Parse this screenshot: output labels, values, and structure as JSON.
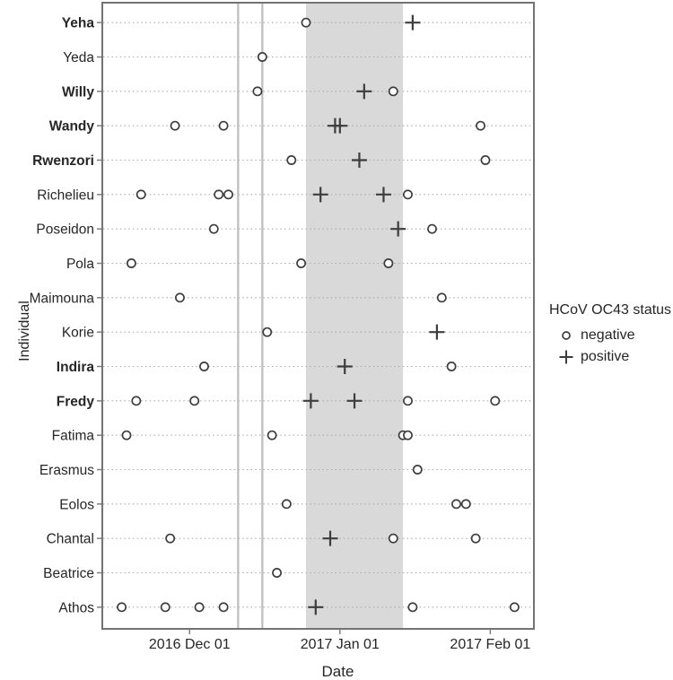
{
  "figure": {
    "background": "#ffffff"
  },
  "colors": {
    "marker": "#3d3d3d",
    "shaded_band": "#d9d9d9",
    "vertical_line": "#bdbdbd",
    "gridline": "#ababab",
    "panel_border": "#737373",
    "tick": "#7f7f7f",
    "text": "#262626"
  },
  "chart_data": {
    "type": "scatter",
    "title": "",
    "xlabel": "Date",
    "ylabel": "Individual",
    "grid": "dotted-horizontal",
    "legend_position": "right",
    "x_domain": [
      "2016-11-13",
      "2017-02-10"
    ],
    "x_ticks": [
      {
        "date": "2016-12-01",
        "label": "2016 Dec 01"
      },
      {
        "date": "2017-01-01",
        "label": "2017 Jan 01"
      },
      {
        "date": "2017-02-01",
        "label": "2017 Feb 01"
      }
    ],
    "shaded_region": {
      "from": "2016-12-25",
      "to": "2017-01-14"
    },
    "vertical_lines": [
      "2016-12-11",
      "2016-12-16"
    ],
    "legend": {
      "title": "HCoV OC43 status",
      "items": [
        {
          "label": "negative",
          "marker": "circle"
        },
        {
          "label": "positive",
          "marker": "plus"
        }
      ]
    },
    "individuals": [
      {
        "name": "Yeha",
        "bold": true,
        "samples": [
          {
            "date": "2016-12-25",
            "status": "negative"
          },
          {
            "date": "2017-01-16",
            "status": "positive"
          }
        ]
      },
      {
        "name": "Yeda",
        "bold": false,
        "samples": [
          {
            "date": "2016-12-16",
            "status": "negative"
          }
        ]
      },
      {
        "name": "Willy",
        "bold": true,
        "samples": [
          {
            "date": "2016-12-15",
            "status": "negative"
          },
          {
            "date": "2017-01-06",
            "status": "positive"
          },
          {
            "date": "2017-01-12",
            "status": "negative"
          }
        ]
      },
      {
        "name": "Wandy",
        "bold": true,
        "samples": [
          {
            "date": "2016-11-28",
            "status": "negative"
          },
          {
            "date": "2016-12-08",
            "status": "negative"
          },
          {
            "date": "2016-12-31",
            "status": "positive"
          },
          {
            "date": "2017-01-01",
            "status": "positive"
          },
          {
            "date": "2017-01-30",
            "status": "negative"
          }
        ]
      },
      {
        "name": "Rwenzori",
        "bold": true,
        "samples": [
          {
            "date": "2016-12-22",
            "status": "negative"
          },
          {
            "date": "2017-01-05",
            "status": "positive"
          },
          {
            "date": "2017-01-31",
            "status": "negative"
          }
        ]
      },
      {
        "name": "Richelieu",
        "bold": false,
        "samples": [
          {
            "date": "2016-11-21",
            "status": "negative"
          },
          {
            "date": "2016-12-07",
            "status": "negative"
          },
          {
            "date": "2016-12-09",
            "status": "negative"
          },
          {
            "date": "2016-12-28",
            "status": "positive"
          },
          {
            "date": "2017-01-10",
            "status": "positive"
          },
          {
            "date": "2017-01-15",
            "status": "negative"
          }
        ]
      },
      {
        "name": "Poseidon",
        "bold": false,
        "samples": [
          {
            "date": "2016-12-06",
            "status": "negative"
          },
          {
            "date": "2017-01-13",
            "status": "positive"
          },
          {
            "date": "2017-01-20",
            "status": "negative"
          }
        ]
      },
      {
        "name": "Pola",
        "bold": false,
        "samples": [
          {
            "date": "2016-11-19",
            "status": "negative"
          },
          {
            "date": "2016-12-24",
            "status": "negative"
          },
          {
            "date": "2017-01-11",
            "status": "negative"
          }
        ]
      },
      {
        "name": "Maimouna",
        "bold": false,
        "samples": [
          {
            "date": "2016-11-29",
            "status": "negative"
          },
          {
            "date": "2017-01-22",
            "status": "negative"
          }
        ]
      },
      {
        "name": "Korie",
        "bold": false,
        "samples": [
          {
            "date": "2016-12-17",
            "status": "negative"
          },
          {
            "date": "2017-01-21",
            "status": "positive"
          }
        ]
      },
      {
        "name": "Indira",
        "bold": true,
        "samples": [
          {
            "date": "2016-12-04",
            "status": "negative"
          },
          {
            "date": "2017-01-02",
            "status": "positive"
          },
          {
            "date": "2017-01-24",
            "status": "negative"
          }
        ]
      },
      {
        "name": "Fredy",
        "bold": true,
        "samples": [
          {
            "date": "2016-11-20",
            "status": "negative"
          },
          {
            "date": "2016-12-02",
            "status": "negative"
          },
          {
            "date": "2016-12-26",
            "status": "positive"
          },
          {
            "date": "2017-01-04",
            "status": "positive"
          },
          {
            "date": "2017-01-15",
            "status": "negative"
          },
          {
            "date": "2017-02-02",
            "status": "negative"
          }
        ]
      },
      {
        "name": "Fatima",
        "bold": false,
        "samples": [
          {
            "date": "2016-11-18",
            "status": "negative"
          },
          {
            "date": "2016-12-18",
            "status": "negative"
          },
          {
            "date": "2017-01-14",
            "status": "negative"
          },
          {
            "date": "2017-01-15",
            "status": "negative"
          }
        ]
      },
      {
        "name": "Erasmus",
        "bold": false,
        "samples": [
          {
            "date": "2017-01-17",
            "status": "negative"
          }
        ]
      },
      {
        "name": "Eolos",
        "bold": false,
        "samples": [
          {
            "date": "2016-12-21",
            "status": "negative"
          },
          {
            "date": "2017-01-25",
            "status": "negative"
          },
          {
            "date": "2017-01-27",
            "status": "negative"
          }
        ]
      },
      {
        "name": "Chantal",
        "bold": false,
        "samples": [
          {
            "date": "2016-11-27",
            "status": "negative"
          },
          {
            "date": "2016-12-30",
            "status": "positive"
          },
          {
            "date": "2017-01-12",
            "status": "negative"
          },
          {
            "date": "2017-01-29",
            "status": "negative"
          }
        ]
      },
      {
        "name": "Beatrice",
        "bold": false,
        "samples": [
          {
            "date": "2016-12-19",
            "status": "negative"
          }
        ]
      },
      {
        "name": "Athos",
        "bold": false,
        "samples": [
          {
            "date": "2016-11-17",
            "status": "negative"
          },
          {
            "date": "2016-11-26",
            "status": "negative"
          },
          {
            "date": "2016-12-03",
            "status": "negative"
          },
          {
            "date": "2016-12-08",
            "status": "negative"
          },
          {
            "date": "2016-12-27",
            "status": "positive"
          },
          {
            "date": "2017-01-16",
            "status": "negative"
          },
          {
            "date": "2017-02-06",
            "status": "negative"
          }
        ]
      }
    ]
  }
}
